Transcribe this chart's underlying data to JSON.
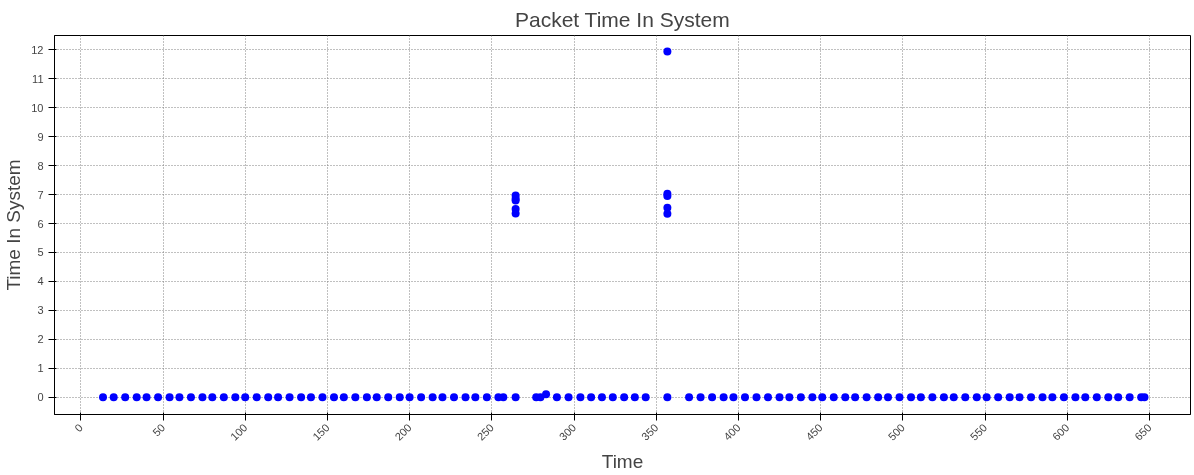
{
  "chart_data": {
    "type": "scatter",
    "title": "Packet Time In System",
    "xlabel": "Time",
    "ylabel": "Time In System",
    "xlim": [
      -16,
      675
    ],
    "ylim": [
      -0.6,
      12.5
    ],
    "xticks": [
      0,
      50,
      100,
      150,
      200,
      250,
      300,
      350,
      400,
      450,
      500,
      550,
      600,
      650
    ],
    "yticks": [
      0,
      1,
      2,
      3,
      4,
      5,
      6,
      7,
      8,
      9,
      10,
      11,
      12
    ],
    "grid": true,
    "marker": "circle",
    "series": [
      {
        "color": "#0000ff",
        "x": [
          13.5,
          20,
          27,
          34,
          40,
          47,
          54,
          60,
          67,
          74,
          80,
          87,
          94,
          100,
          107,
          114,
          120,
          127,
          134,
          140,
          147,
          154,
          160,
          167,
          174,
          180,
          187,
          194,
          200,
          207,
          214,
          220,
          227,
          234,
          240,
          247,
          254,
          257,
          264.5,
          264.5,
          264.5,
          264.5,
          264.5,
          264.5,
          277,
          279.6,
          283,
          289.6,
          296.7,
          303.9,
          310.4,
          317,
          323.6,
          330.5,
          337,
          343.6,
          356.8,
          356.8,
          356.8,
          356.8,
          356.8,
          356.8,
          370,
          377,
          384,
          391,
          397,
          404,
          411,
          418,
          425,
          431,
          438,
          445,
          451,
          458,
          465,
          471,
          478,
          485,
          491,
          498,
          505,
          511,
          518,
          525,
          531,
          538,
          545,
          551,
          558,
          565,
          571,
          578,
          585,
          591,
          598,
          605,
          611,
          618,
          625,
          631,
          638,
          645,
          647
        ],
        "values": [
          0,
          0,
          0,
          0,
          0,
          0,
          0,
          0,
          0,
          0,
          0,
          0,
          0,
          0,
          0,
          0,
          0,
          0,
          0,
          0,
          0,
          0,
          0,
          0,
          0,
          0,
          0,
          0,
          0,
          0,
          0,
          0,
          0,
          0,
          0,
          0,
          0,
          0,
          0,
          6.97,
          6.86,
          6.8,
          6.5,
          6.35,
          0,
          0,
          0.1,
          0,
          0,
          0,
          0,
          0,
          0,
          0,
          0,
          0,
          0,
          11.95,
          7.03,
          6.95,
          6.55,
          6.34,
          0,
          0,
          0,
          0,
          0,
          0,
          0,
          0,
          0,
          0,
          0,
          0,
          0,
          0,
          0,
          0,
          0,
          0,
          0,
          0,
          0,
          0,
          0,
          0,
          0,
          0,
          0,
          0,
          0,
          0,
          0,
          0,
          0,
          0,
          0,
          0,
          0,
          0,
          0,
          0,
          0,
          0,
          0
        ]
      }
    ]
  }
}
